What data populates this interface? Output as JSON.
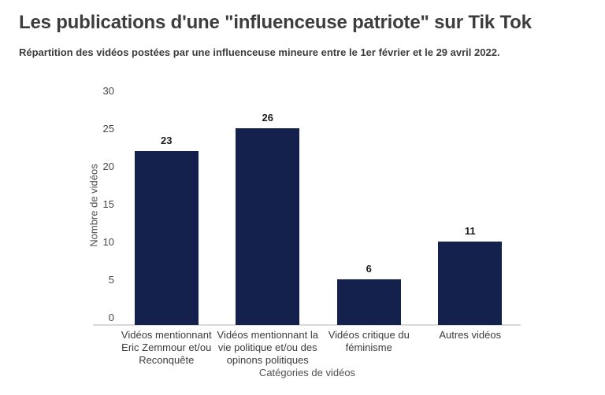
{
  "page": {
    "background": "#ffffff"
  },
  "header": {
    "title": "Les publications d'une \"influenceuse patriote\" sur Tik Tok",
    "subtitle": "Répartition des vidéos postées par une influenceuse mineure entre le 1er février et le 29 avril 2022."
  },
  "chart_data": {
    "type": "bar",
    "title": "Les publications d'une \"influenceuse patriote\" sur Tik Tok",
    "subtitle": "Répartition des vidéos postées par une influenceuse mineure entre le 1er février et le 29 avril 2022.",
    "categories": [
      "Vidéos mentionnant Eric Zemmour et/ou Reconquête",
      "Vidéos mentionnant la vie politique et/ou des opinons politiques",
      "Vidéos critique du féminisme",
      "Autres vidéos"
    ],
    "category_lines": [
      [
        "Vidéos mentionnant",
        "Eric Zemmour et/ou",
        "Reconquête"
      ],
      [
        "Vidéos mentionnant la",
        "vie politique et/ou des",
        "opinons politiques"
      ],
      [
        "Vidéos critique du",
        "féminisme"
      ],
      [
        "Autres vidéos"
      ]
    ],
    "values": [
      23,
      26,
      6,
      11
    ],
    "value_labels": [
      "23",
      "26",
      "6",
      "11"
    ],
    "xlabel": "Catégories de vidéos",
    "ylabel": "Nombre de vidéos",
    "ylim": [
      0,
      30
    ],
    "yticks": [
      0,
      5,
      10,
      15,
      20,
      25,
      30
    ],
    "grid": false,
    "legend": false,
    "bar_color": "#14214d",
    "axis_line_color": "#d9d9d9",
    "tick_label_color": "#454545",
    "value_label_color": "#1c1c1c",
    "category_label_color": "#3b3b3b",
    "axis_title_color": "#4f4f4f",
    "title_color": "#3d3d3d"
  }
}
